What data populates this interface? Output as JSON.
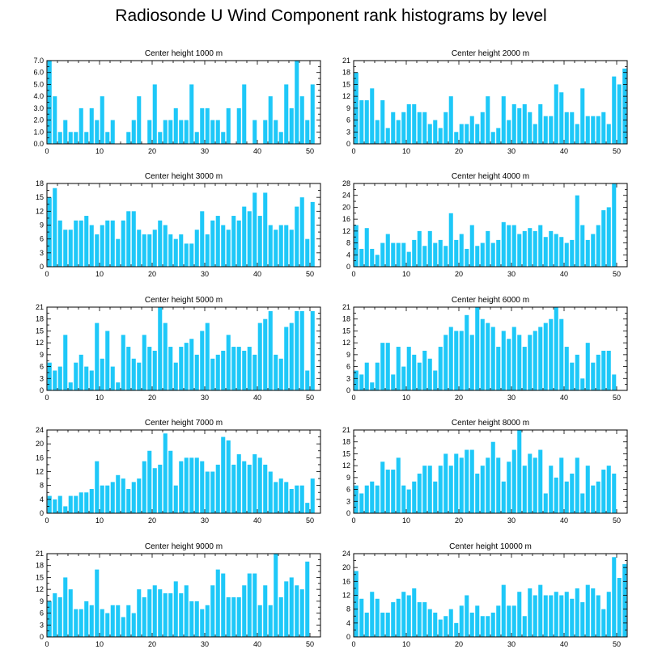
{
  "figure_title": "Radiosonde U Wind Component rank histograms by level",
  "bar_color": "#1ec8f8",
  "chart_data": [
    {
      "type": "bar",
      "title": "Center height 1000 m",
      "xlim": [
        0,
        52
      ],
      "xticks": [
        "0",
        "10",
        "20",
        "30",
        "40",
        "50"
      ],
      "ylim": [
        0,
        7
      ],
      "yticks": [
        "0.0",
        "1.0",
        "2.0",
        "3.0",
        "4.0",
        "5.0",
        "6.0",
        "7.0"
      ],
      "values": [
        7,
        4,
        1,
        2,
        1,
        1,
        3,
        1,
        3,
        2,
        4,
        1,
        2,
        0,
        0,
        1,
        2,
        4,
        0,
        2,
        5,
        1,
        2,
        2,
        3,
        2,
        2,
        5,
        1,
        3,
        3,
        2,
        2,
        1,
        3,
        0,
        3,
        5,
        0,
        2,
        0,
        2,
        4,
        2,
        1,
        5,
        3,
        7,
        4,
        2,
        5
      ]
    },
    {
      "type": "bar",
      "title": "Center height 2000 m",
      "xlim": [
        0,
        52
      ],
      "xticks": [
        "0",
        "10",
        "20",
        "30",
        "40",
        "50"
      ],
      "ylim": [
        0,
        21
      ],
      "yticks": [
        "0",
        "3",
        "6",
        "9",
        "12",
        "15",
        "18",
        "21"
      ],
      "values": [
        18,
        11,
        11,
        14,
        6,
        11,
        4,
        8,
        6,
        8,
        10,
        10,
        8,
        8,
        5,
        6,
        4,
        8,
        12,
        3,
        5,
        5,
        7,
        5,
        8,
        12,
        3,
        4,
        12,
        6,
        10,
        9,
        10,
        8,
        5,
        10,
        7,
        7,
        15,
        13,
        8,
        8,
        5,
        14,
        7,
        7,
        7,
        8,
        5,
        17,
        15,
        19
      ]
    },
    {
      "type": "bar",
      "title": "Center height 3000 m",
      "xlim": [
        0,
        52
      ],
      "xticks": [
        "0",
        "10",
        "20",
        "30",
        "40",
        "50"
      ],
      "ylim": [
        0,
        18
      ],
      "yticks": [
        "0",
        "3",
        "6",
        "9",
        "12",
        "15",
        "18"
      ],
      "values": [
        15,
        17,
        10,
        8,
        8,
        10,
        10,
        11,
        9,
        7,
        9,
        10,
        10,
        6,
        10,
        12,
        12,
        8,
        7,
        7,
        8,
        10,
        9,
        7,
        6,
        7,
        5,
        5,
        8,
        12,
        7,
        10,
        11,
        9,
        8,
        11,
        10,
        13,
        12,
        16,
        11,
        16,
        9,
        8,
        9,
        9,
        8,
        13,
        15,
        6,
        14
      ]
    },
    {
      "type": "bar",
      "title": "Center height 4000 m",
      "xlim": [
        0,
        52
      ],
      "xticks": [
        "0",
        "10",
        "20",
        "30",
        "40",
        "50"
      ],
      "ylim": [
        0,
        28
      ],
      "yticks": [
        "0",
        "4",
        "8",
        "12",
        "16",
        "20",
        "24",
        "28"
      ],
      "values": [
        14,
        6,
        13,
        6,
        4,
        8,
        11,
        8,
        8,
        8,
        5,
        9,
        12,
        7,
        12,
        8,
        9,
        7,
        18,
        9,
        11,
        6,
        14,
        7,
        8,
        12,
        8,
        9,
        15,
        14,
        14,
        11,
        12,
        13,
        12,
        14,
        10,
        12,
        11,
        10,
        8,
        9,
        24,
        14,
        9,
        11,
        14,
        19,
        20,
        28
      ]
    },
    {
      "type": "bar",
      "title": "Center height 5000 m",
      "xlim": [
        0,
        52
      ],
      "xticks": [
        "0",
        "10",
        "20",
        "30",
        "40",
        "50"
      ],
      "ylim": [
        0,
        21
      ],
      "yticks": [
        "0",
        "3",
        "6",
        "9",
        "12",
        "15",
        "18",
        "21"
      ],
      "values": [
        7,
        5,
        6,
        14,
        2,
        7,
        9,
        6,
        5,
        17,
        8,
        15,
        6,
        2,
        14,
        11,
        8,
        7,
        14,
        11,
        10,
        21,
        17,
        11,
        7,
        11,
        12,
        13,
        9,
        15,
        17,
        8,
        9,
        10,
        14,
        11,
        11,
        10,
        11,
        9,
        17,
        18,
        20,
        9,
        8,
        16,
        17,
        20,
        20,
        5,
        20
      ]
    },
    {
      "type": "bar",
      "title": "Center height 6000 m",
      "xlim": [
        0,
        52
      ],
      "xticks": [
        "0",
        "10",
        "20",
        "30",
        "40",
        "50"
      ],
      "ylim": [
        0,
        21
      ],
      "yticks": [
        "0",
        "3",
        "6",
        "9",
        "12",
        "15",
        "18",
        "21"
      ],
      "values": [
        5,
        4,
        7,
        2,
        7,
        12,
        12,
        4,
        11,
        6,
        11,
        9,
        7,
        10,
        8,
        5,
        11,
        14,
        16,
        15,
        15,
        19,
        14,
        21,
        18,
        17,
        16,
        11,
        15,
        13,
        16,
        14,
        11,
        14,
        15,
        16,
        17,
        18,
        21,
        18,
        11,
        7,
        9,
        3,
        12,
        7,
        9,
        10,
        10,
        4
      ]
    },
    {
      "type": "bar",
      "title": "Center height 7000 m",
      "xlim": [
        0,
        52
      ],
      "xticks": [
        "0",
        "10",
        "20",
        "30",
        "40",
        "50"
      ],
      "ylim": [
        0,
        24
      ],
      "yticks": [
        "0",
        "4",
        "8",
        "12",
        "16",
        "20",
        "24"
      ],
      "values": [
        5,
        4,
        5,
        2,
        5,
        5,
        6,
        6,
        7,
        15,
        8,
        8,
        9,
        11,
        10,
        7,
        9,
        10,
        15,
        18,
        13,
        14,
        23,
        18,
        8,
        15,
        16,
        16,
        16,
        15,
        12,
        12,
        14,
        22,
        21,
        14,
        17,
        15,
        14,
        17,
        16,
        14,
        12,
        9,
        10,
        9,
        7,
        8,
        8,
        3,
        10
      ]
    },
    {
      "type": "bar",
      "title": "Center height 8000 m",
      "xlim": [
        0,
        52
      ],
      "xticks": [
        "0",
        "10",
        "20",
        "30",
        "40",
        "50"
      ],
      "ylim": [
        0,
        21
      ],
      "yticks": [
        "0",
        "3",
        "6",
        "9",
        "12",
        "15",
        "18",
        "21"
      ],
      "values": [
        7,
        5,
        7,
        8,
        7,
        13,
        11,
        11,
        14,
        7,
        6,
        8,
        10,
        12,
        12,
        8,
        12,
        15,
        12,
        15,
        14,
        16,
        16,
        10,
        12,
        14,
        18,
        14,
        8,
        13,
        16,
        21,
        12,
        15,
        14,
        16,
        5,
        12,
        9,
        14,
        8,
        10,
        14,
        5,
        12,
        7,
        8,
        11,
        12,
        10
      ]
    },
    {
      "type": "bar",
      "title": "Center height 9000 m",
      "xlim": [
        0,
        52
      ],
      "xticks": [
        "0",
        "10",
        "20",
        "30",
        "40",
        "50"
      ],
      "ylim": [
        0,
        21
      ],
      "yticks": [
        "0",
        "3",
        "6",
        "9",
        "12",
        "15",
        "18",
        "21"
      ],
      "values": [
        9,
        11,
        10,
        15,
        12,
        7,
        7,
        9,
        8,
        17,
        7,
        6,
        8,
        8,
        5,
        8,
        6,
        12,
        10,
        12,
        13,
        12,
        11,
        11,
        14,
        11,
        13,
        9,
        9,
        7,
        8,
        13,
        17,
        16,
        10,
        10,
        10,
        13,
        16,
        16,
        8,
        13,
        8,
        21,
        10,
        14,
        15,
        13,
        12,
        19
      ]
    },
    {
      "type": "bar",
      "title": "Center height 10000 m",
      "xlim": [
        0,
        52
      ],
      "xticks": [
        "0",
        "10",
        "20",
        "30",
        "40",
        "50"
      ],
      "ylim": [
        0,
        24
      ],
      "yticks": [
        "0",
        "4",
        "8",
        "12",
        "16",
        "20",
        "24"
      ],
      "values": [
        19,
        11,
        7,
        13,
        11,
        7,
        7,
        10,
        11,
        13,
        12,
        14,
        10,
        10,
        8,
        7,
        5,
        6,
        8,
        4,
        9,
        12,
        7,
        9,
        6,
        6,
        7,
        9,
        15,
        9,
        9,
        13,
        6,
        14,
        12,
        15,
        12,
        12,
        13,
        12,
        13,
        11,
        14,
        10,
        15,
        14,
        12,
        8,
        13,
        23,
        17,
        21
      ]
    }
  ]
}
